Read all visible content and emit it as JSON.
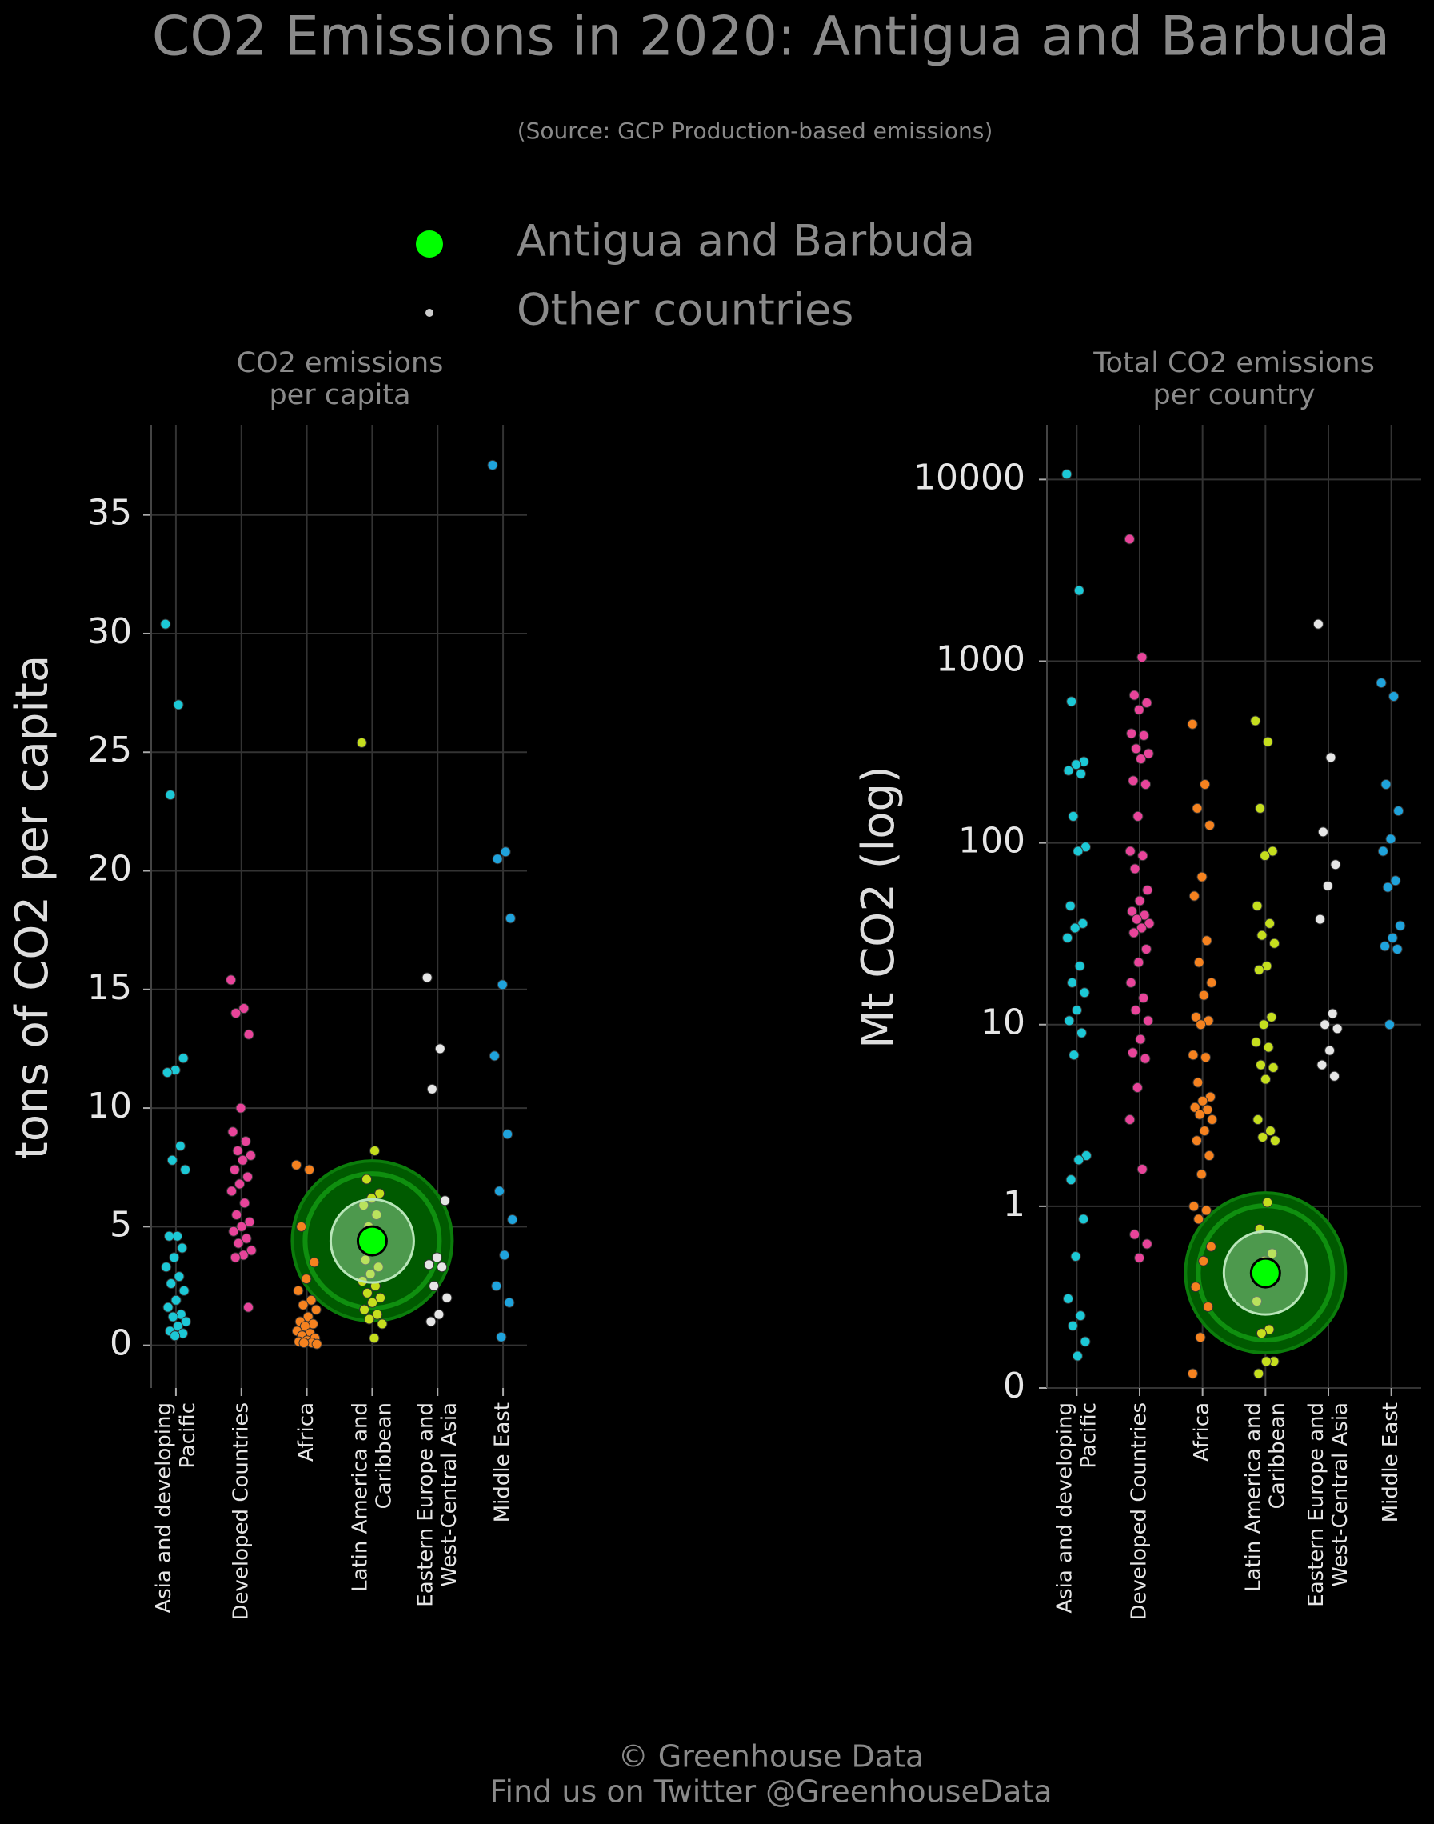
{
  "title": "CO2 Emissions in 2020: Antigua and Barbuda",
  "subtitle": "(Source: GCP Production-based emissions)",
  "legend": [
    {
      "name": "Antigua and Barbuda",
      "color": "#00ff00"
    },
    {
      "name": "Other countries",
      "color": "#cccccc"
    }
  ],
  "footer": [
    "© Greenhouse Data",
    "Find us on Twitter @GreenhouseData"
  ],
  "chart_data": [
    {
      "type": "strip",
      "title": "CO2 emissions\nper capita",
      "y_label": "tons of CO2 per capita",
      "log_scale": false,
      "grid": true,
      "categories": [
        "Asia and developing\nPacific",
        "Developed Countries",
        "Africa",
        "Latin America and\nCaribbean",
        "Eastern Europe and\nWest-Central Asia",
        "Middle East"
      ],
      "colors": [
        "#1cc8d6",
        "#e8449a",
        "#f5821f",
        "#c5de1e",
        "#e6e6e6",
        "#1fa3dc"
      ],
      "values": [
        [
          30.4,
          27,
          23.2,
          12.1,
          11.6,
          11.5,
          8.4,
          7.8,
          7.4,
          4.6,
          4.6,
          4.1,
          3.7,
          3.3,
          2.9,
          2.6,
          2.3,
          1.9,
          1.6,
          1.3,
          1.2,
          1.0,
          0.8,
          0.6,
          0.5,
          0.4
        ],
        [
          15.4,
          14.2,
          14.0,
          13.1,
          10.0,
          9.0,
          8.6,
          8.2,
          8.0,
          7.8,
          7.4,
          7.1,
          6.8,
          6.5,
          6.0,
          5.5,
          5.2,
          5.0,
          4.8,
          4.5,
          4.3,
          4.0,
          3.8,
          3.7,
          1.6
        ],
        [
          7.6,
          7.4,
          5.0,
          3.5,
          2.8,
          2.3,
          1.9,
          1.7,
          1.5,
          1.2,
          1.0,
          0.9,
          0.8,
          0.6,
          0.5,
          0.4,
          0.3,
          0.2,
          0.15,
          0.1,
          0.1,
          0.05
        ],
        [
          25.4,
          8.2,
          7.0,
          6.4,
          6.2,
          5.9,
          5.5,
          5.0,
          4.5,
          4.0,
          3.6,
          3.3,
          3.0,
          2.7,
          2.5,
          2.2,
          2.0,
          1.8,
          1.5,
          1.3,
          1.1,
          0.9,
          0.3
        ],
        [
          15.5,
          12.5,
          10.8,
          6.1,
          3.7,
          3.4,
          3.3,
          2.5,
          2.0,
          1.3,
          1.0
        ],
        [
          37.1,
          20.8,
          20.5,
          18.0,
          15.2,
          12.2,
          8.9,
          6.5,
          5.3,
          3.8,
          2.5,
          1.8,
          0.35
        ]
      ],
      "highlight": {
        "category": 3,
        "value": 4.4
      },
      "ylim": [
        -1.8,
        38.8
      ],
      "yticks": [
        0,
        5,
        10,
        15,
        20,
        25,
        30,
        35
      ]
    },
    {
      "type": "strip",
      "title": "Total CO2 emissions\nper country",
      "y_label": "Mt CO2 (log)",
      "log_scale": true,
      "grid": true,
      "categories": [
        "Asia and developing\nPacific",
        "Developed Countries",
        "Africa",
        "Latin America and\nCaribbean",
        "Eastern Europe and\nWest-Central Asia",
        "Middle East"
      ],
      "colors": [
        "#1cc8d6",
        "#e8449a",
        "#f5821f",
        "#c5de1e",
        "#e6e6e6",
        "#1fa3dc"
      ],
      "values": [
        [
          10700,
          2450,
          600,
          280,
          270,
          250,
          240,
          140,
          95,
          90,
          45,
          36,
          34,
          30,
          21,
          17,
          15,
          12,
          10.5,
          9,
          6.8,
          1.9,
          1.8,
          1.4,
          0.85,
          0.53,
          0.31,
          0.25,
          0.22,
          0.18,
          0.15
        ],
        [
          4700,
          1050,
          650,
          590,
          540,
          400,
          390,
          330,
          310,
          290,
          220,
          210,
          140,
          90,
          85,
          72,
          55,
          48,
          42,
          40,
          38,
          36,
          34,
          32,
          26,
          22,
          17,
          14,
          12,
          10.5,
          8.3,
          7,
          6.5,
          4.5,
          3.0,
          1.6,
          0.7,
          0.62,
          0.52
        ],
        [
          450,
          210,
          155,
          125,
          65,
          51,
          29,
          22,
          17,
          14.5,
          11,
          10.5,
          10,
          6.8,
          6.6,
          4.8,
          4,
          3.8,
          3.5,
          3.4,
          3.2,
          3.0,
          2.6,
          2.3,
          1.9,
          1.5,
          1.0,
          0.95,
          0.85,
          0.6,
          0.5,
          0.36,
          0.28,
          0.19,
          0.12
        ],
        [
          470,
          360,
          155,
          90,
          85,
          45,
          36,
          31,
          28,
          21,
          20,
          11,
          10,
          8,
          7.5,
          6,
          5.8,
          5,
          3,
          2.6,
          2.4,
          2.3,
          1.05,
          0.75,
          0.55,
          0.5,
          0.3,
          0.21,
          0.2,
          0.14,
          0.14,
          0.12
        ],
        [
          1600,
          295,
          115,
          76,
          58,
          38,
          11.5,
          10,
          9.5,
          7.2,
          6,
          5.2
        ],
        [
          760,
          640,
          210,
          150,
          105,
          90,
          62,
          57,
          35,
          30,
          27,
          26,
          10
        ]
      ],
      "highlight": {
        "category": 3,
        "value": 0.43
      },
      "ylim": [
        0.1,
        20000
      ],
      "yticks": [
        {
          "value": 0.1,
          "label": "0"
        },
        1,
        10,
        100,
        1000,
        10000
      ]
    }
  ]
}
